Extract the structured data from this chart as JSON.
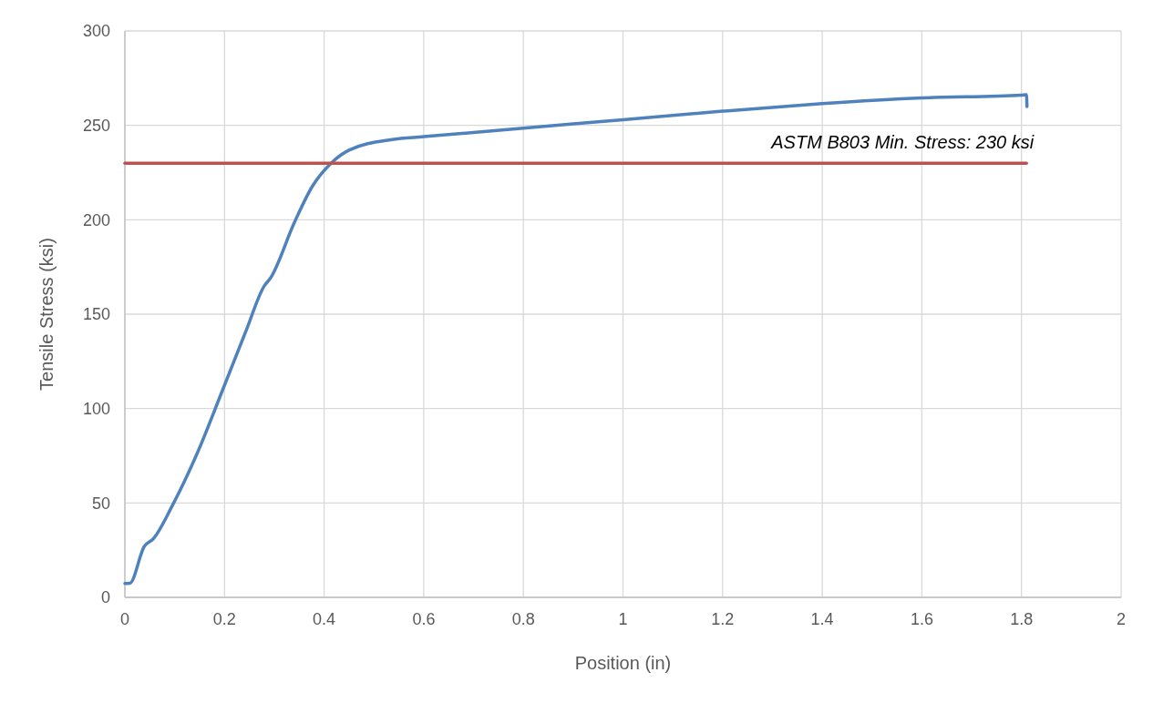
{
  "chart_data": {
    "type": "line",
    "xlabel": "Position (in)",
    "ylabel": "Tensile Stress (ksi)",
    "xlim": [
      0,
      2
    ],
    "ylim": [
      0,
      300
    ],
    "xticks": [
      0,
      {
        "value": 0.2,
        "label": "0.2"
      },
      {
        "value": 0.4,
        "label": "0.4"
      },
      {
        "value": 0.6,
        "label": "0.6"
      },
      {
        "value": 0.8,
        "label": "0.8"
      },
      1,
      {
        "value": 1.2,
        "label": "1.2"
      },
      {
        "value": 1.4,
        "label": "1.4"
      },
      {
        "value": 1.6,
        "label": "1.6"
      },
      {
        "value": 1.8,
        "label": "1.8"
      },
      2
    ],
    "yticks": [
      0,
      50,
      100,
      150,
      200,
      250,
      300
    ],
    "grid": true,
    "marker": "none",
    "line_style": "solid",
    "series": [
      {
        "color": "#4f81bd",
        "x": [
          0,
          0.01,
          0.039,
          0.057,
          0.097,
          0.146,
          0.195,
          0.243,
          0.28,
          0.292,
          0.341,
          0.377,
          0.414,
          0.451,
          0.536,
          0.6,
          0.8,
          1.0,
          1.2,
          1.4,
          1.6,
          1.8,
          1.81,
          1.811
        ],
        "values": [
          7.4,
          7.5,
          27,
          31,
          49.5,
          76.8,
          109,
          141,
          165,
          169,
          199,
          218,
          230,
          237,
          242.5,
          244,
          248.5,
          253,
          257.5,
          261.5,
          264.5,
          266,
          266.2,
          260
        ]
      },
      {
        "color": "#c0504d",
        "x": [
          0,
          1.81
        ],
        "values": [
          230,
          230
        ]
      }
    ],
    "annotations": [
      "ASTM B803 Min. Stress: 230 ksi"
    ]
  }
}
